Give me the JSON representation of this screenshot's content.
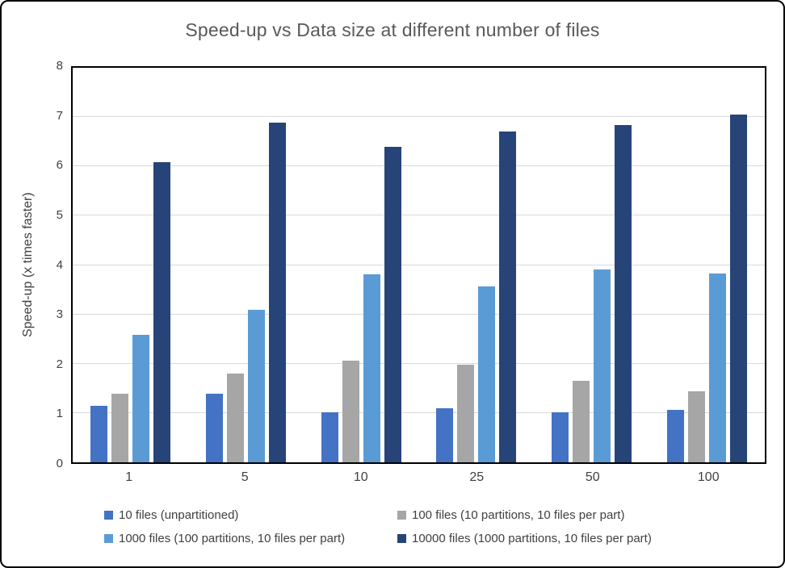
{
  "chart_data": {
    "type": "bar",
    "title": "Speed-up vs Data size at different number of files",
    "xlabel": "",
    "ylabel": "Speed-up (x times faster)",
    "ylim": [
      0,
      8
    ],
    "ytick_step": 1,
    "grid": true,
    "legend_position": "bottom",
    "categories": [
      "1",
      "5",
      "10",
      "25",
      "50",
      "100"
    ],
    "series": [
      {
        "name": "10 files (unpartitioned)",
        "color": "#4472C4",
        "values": [
          1.15,
          1.39,
          1.01,
          1.1,
          1.01,
          1.06
        ]
      },
      {
        "name": "100 files (10 partitions, 10 files per part)",
        "color": "#A6A6A6",
        "values": [
          1.39,
          1.8,
          2.06,
          1.98,
          1.66,
          1.44
        ]
      },
      {
        "name": "1000 files (100 partitions, 10 files per part)",
        "color": "#5B9BD5",
        "values": [
          2.58,
          3.1,
          3.82,
          3.57,
          3.91,
          3.83
        ]
      },
      {
        "name": "10000 files (1000 partitions, 10 files per part)",
        "color": "#264478",
        "values": [
          6.08,
          6.88,
          6.4,
          6.71,
          6.84,
          7.05
        ]
      }
    ]
  }
}
